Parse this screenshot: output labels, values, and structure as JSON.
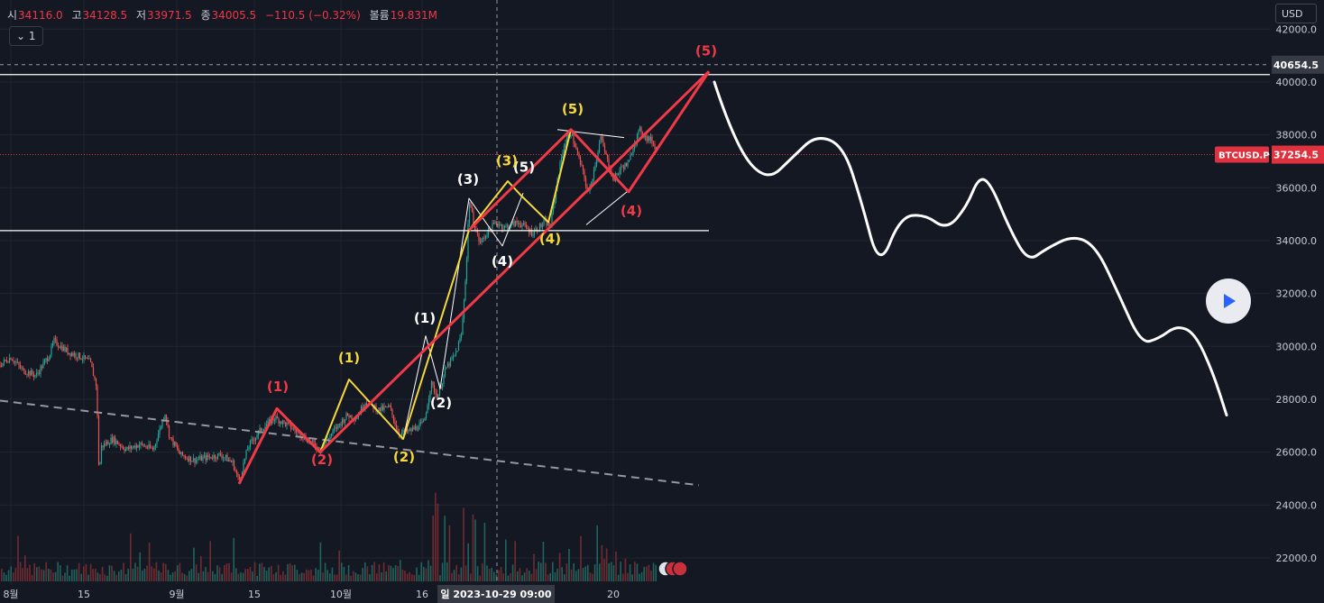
{
  "header": {
    "ohlc": [
      {
        "key": "시",
        "value": "34116.0"
      },
      {
        "key": "고",
        "value": "34128.5"
      },
      {
        "key": "저",
        "value": "33971.5"
      },
      {
        "key": "종",
        "value": "34005.5"
      },
      {
        "key": "",
        "value": "−110.5 (−0.32%)"
      },
      {
        "key": "볼륨",
        "value": "19.831M"
      }
    ],
    "interval_label": "1",
    "currency": "USD"
  },
  "colors": {
    "background": "#141823",
    "grid": "#20242e",
    "axis_text": "#c8ccd6",
    "up_candle": "#26a69a",
    "down_candle": "#ef5350",
    "wave_red": "#f03a47",
    "wave_yellow": "#f5d83a",
    "wave_white": "#ffffff",
    "price_tag": "#e0323e"
  },
  "chart_data": {
    "type": "candlestick",
    "symbol": "BTCUSD.P",
    "ylim": [
      21500,
      42500
    ],
    "y_ticks": [
      "42000.0",
      "40000.0",
      "38000.0",
      "36000.0",
      "34000.0",
      "32000.0",
      "30000.0",
      "28000.0",
      "26000.0",
      "24000.0",
      "22000.0"
    ],
    "x_ticks": [
      "8월",
      "15",
      "9월",
      "15",
      "10월",
      "16",
      "20"
    ],
    "crosshair_time_label": "일 2023-10-29   09:00",
    "crosshair_price_label": "40654.5",
    "last_price": {
      "symbol": "BTCUSD.P",
      "value": "37254.5"
    },
    "horizontal_lines": [
      40280,
      34380
    ],
    "trendline": [
      {
        "x": 0,
        "y": 27950
      },
      {
        "x": 775,
        "y": 24750
      }
    ],
    "price_path": [
      [
        0,
        29300
      ],
      [
        12,
        29600
      ],
      [
        25,
        29100
      ],
      [
        40,
        28900
      ],
      [
        55,
        29700
      ],
      [
        60,
        30200
      ],
      [
        75,
        29800
      ],
      [
        90,
        29600
      ],
      [
        100,
        29400
      ],
      [
        107,
        28500
      ],
      [
        110,
        25000
      ],
      [
        112,
        26200
      ],
      [
        125,
        26500
      ],
      [
        140,
        26100
      ],
      [
        155,
        26300
      ],
      [
        170,
        26100
      ],
      [
        183,
        27500
      ],
      [
        188,
        26600
      ],
      [
        200,
        25900
      ],
      [
        215,
        25700
      ],
      [
        230,
        25800
      ],
      [
        245,
        25900
      ],
      [
        258,
        25600
      ],
      [
        265,
        24900
      ],
      [
        275,
        26200
      ],
      [
        290,
        26900
      ],
      [
        305,
        27300
      ],
      [
        320,
        27000
      ],
      [
        340,
        26500
      ],
      [
        355,
        26100
      ],
      [
        370,
        26800
      ],
      [
        385,
        27400
      ],
      [
        395,
        27300
      ],
      [
        405,
        27900
      ],
      [
        420,
        27600
      ],
      [
        432,
        27700
      ],
      [
        442,
        26700
      ],
      [
        455,
        26800
      ],
      [
        470,
        27100
      ],
      [
        478,
        28600
      ],
      [
        485,
        28100
      ],
      [
        495,
        29200
      ],
      [
        505,
        29700
      ],
      [
        512,
        30500
      ],
      [
        518,
        33600
      ],
      [
        520,
        35600
      ],
      [
        525,
        34700
      ],
      [
        532,
        33900
      ],
      [
        540,
        34300
      ],
      [
        550,
        34700
      ],
      [
        560,
        34500
      ],
      [
        575,
        34700
      ],
      [
        590,
        34300
      ],
      [
        605,
        34700
      ],
      [
        610,
        34500
      ],
      [
        618,
        36300
      ],
      [
        625,
        37600
      ],
      [
        633,
        38100
      ],
      [
        640,
        37300
      ],
      [
        648,
        36400
      ],
      [
        652,
        35700
      ],
      [
        658,
        36600
      ],
      [
        666,
        37900
      ],
      [
        672,
        37200
      ],
      [
        680,
        36300
      ],
      [
        690,
        36800
      ],
      [
        697,
        36900
      ],
      [
        703,
        37700
      ],
      [
        710,
        38200
      ],
      [
        716,
        37900
      ],
      [
        722,
        37800
      ],
      [
        728,
        37500
      ]
    ],
    "volume_bars": 280,
    "wave_counts": {
      "red_impulse": {
        "path": [
          [
            265,
            24800
          ],
          [
            307,
            27650
          ],
          [
            355,
            26000
          ],
          [
            786,
            40400
          ]
        ],
        "path2": [
          [
            520,
            34400
          ],
          [
            633,
            38200
          ],
          [
            697,
            35850
          ],
          [
            786,
            40400
          ]
        ],
        "labels": [
          {
            "text": "(1)",
            "x": 308,
            "y": 28300
          },
          {
            "text": "(2)",
            "x": 357,
            "y": 25550
          },
          {
            "text": "(4)",
            "x": 700,
            "y": 34950
          },
          {
            "text": "(5)",
            "x": 783,
            "y": 41000
          }
        ]
      },
      "yellow": {
        "path": [
          [
            355,
            26000
          ],
          [
            387,
            28750
          ],
          [
            447,
            26500
          ],
          [
            520,
            34400
          ],
          [
            563,
            36250
          ],
          [
            578,
            35700
          ],
          [
            608,
            34700
          ],
          [
            633,
            38200
          ]
        ],
        "labels": [
          {
            "text": "(1)",
            "x": 387,
            "y": 29400
          },
          {
            "text": "(2)",
            "x": 448,
            "y": 25650
          },
          {
            "text": "(3)",
            "x": 562,
            "y": 36850
          },
          {
            "text": "(4)",
            "x": 610,
            "y": 33900
          },
          {
            "text": "(5)",
            "x": 635,
            "y": 38800
          }
        ]
      },
      "white": {
        "path": [
          [
            447,
            26500
          ],
          [
            472,
            30400
          ],
          [
            488,
            28400
          ],
          [
            520,
            35600
          ],
          [
            557,
            33800
          ],
          [
            580,
            35800
          ]
        ],
        "labels": [
          {
            "text": "(1)",
            "x": 471,
            "y": 30900
          },
          {
            "text": "(2)",
            "x": 489,
            "y": 27700
          },
          {
            "text": "(3)",
            "x": 519,
            "y": 36150
          },
          {
            "text": "(4)",
            "x": 557,
            "y": 33050
          },
          {
            "text": "(5)",
            "x": 581,
            "y": 36600
          }
        ]
      },
      "triangle_lines": [
        [
          [
            618,
            38200
          ],
          [
            692,
            37900
          ]
        ],
        [
          [
            650,
            34600
          ],
          [
            697,
            35900
          ]
        ]
      ]
    },
    "projection_path": [
      [
        792,
        40000
      ],
      [
        815,
        37600
      ],
      [
        850,
        36200
      ],
      [
        880,
        37200
      ],
      [
        905,
        38000
      ],
      [
        935,
        37600
      ],
      [
        955,
        35500
      ],
      [
        975,
        32900
      ],
      [
        998,
        34900
      ],
      [
        1025,
        35000
      ],
      [
        1050,
        34400
      ],
      [
        1072,
        35300
      ],
      [
        1085,
        36400
      ],
      [
        1098,
        36200
      ],
      [
        1120,
        34400
      ],
      [
        1140,
        33200
      ],
      [
        1160,
        33700
      ],
      [
        1190,
        34200
      ],
      [
        1215,
        33800
      ],
      [
        1240,
        32000
      ],
      [
        1265,
        30100
      ],
      [
        1285,
        30300
      ],
      [
        1305,
        30800
      ],
      [
        1325,
        30500
      ],
      [
        1345,
        29000
      ],
      [
        1360,
        27400
      ]
    ]
  }
}
